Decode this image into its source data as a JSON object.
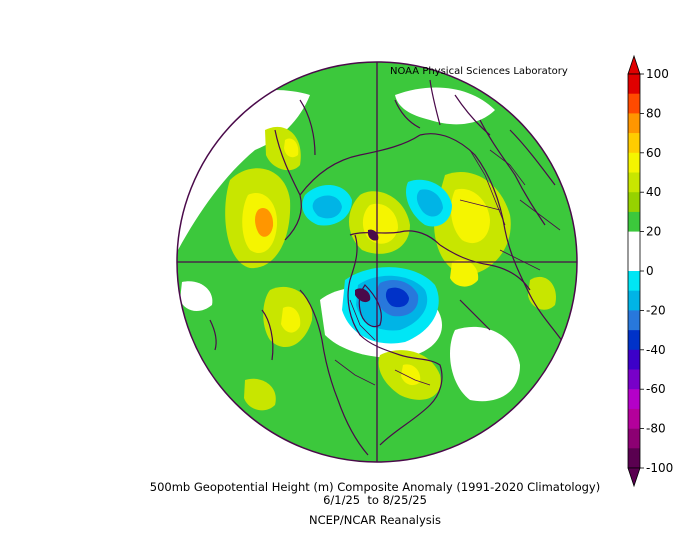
{
  "credit": "NOAA Physical Sciences Laboratory",
  "caption": {
    "line1": "500mb Geopotential Height (m) Composite Anomaly (1991-2020 Climatology)",
    "line2": "6/1/25  to 8/25/25",
    "line3": "NCEP/NCAR Reanalysis"
  },
  "colorbar": {
    "ticks": [
      "100",
      "80",
      "60",
      "40",
      "20",
      "0",
      "-20",
      "-40",
      "-60",
      "-80",
      "-100"
    ],
    "colors": [
      "#e00000",
      "#ff4a00",
      "#ff9600",
      "#ffcc00",
      "#f5f500",
      "#c8e600",
      "#96d200",
      "#3cc83c",
      "#ffffff",
      "#ffffff",
      "#00e6f5",
      "#00b4e6",
      "#2878dc",
      "#0032c8",
      "#3c00c8",
      "#7800c8",
      "#b400c8",
      "#b4009b",
      "#8c0073",
      "#5a0050"
    ],
    "top_arrow_color": "#e00000",
    "bottom_arrow_color": "#5a0050"
  },
  "map": {
    "projection": "north polar stereographic",
    "outline_color": "#4a0a4a",
    "background_fill": "#3cc83c",
    "anomaly_regions": [
      {
        "name": "positive-anomaly-west-atlantic",
        "level": "40-60"
      },
      {
        "name": "positive-anomaly-arctic-ocean",
        "level": "40-60"
      },
      {
        "name": "positive-anomaly-north-central-asia",
        "level": "40-60"
      },
      {
        "name": "negative-anomaly-hudson-bay",
        "level": "-40 to -60"
      },
      {
        "name": "negative-anomaly-greenland-sea",
        "level": "-20 to -40"
      },
      {
        "name": "negative-anomaly-east-siberian-sea",
        "level": "-20 to -40"
      }
    ]
  }
}
